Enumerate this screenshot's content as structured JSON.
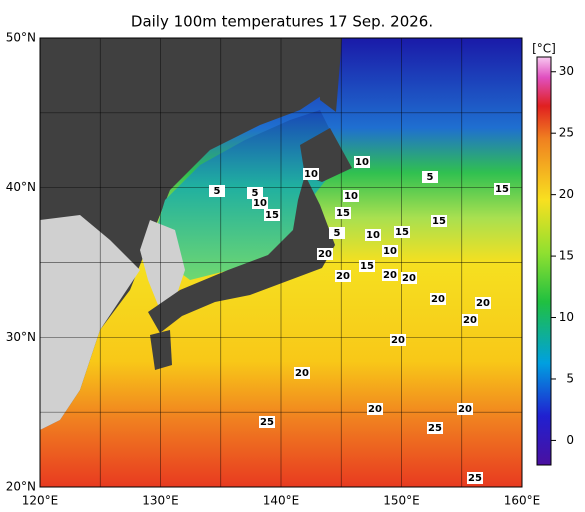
{
  "map": {
    "title": "Daily 100m temperatures 17 Sep. 2026.",
    "xlim": [
      120,
      160
    ],
    "ylim": [
      20,
      50
    ],
    "xticks": [
      {
        "value": 120,
        "label": "120°E"
      },
      {
        "value": 130,
        "label": "130°E"
      },
      {
        "value": 140,
        "label": "140°E"
      },
      {
        "value": 150,
        "label": "150°E"
      },
      {
        "value": 160,
        "label": "160°E"
      }
    ],
    "yticks": [
      {
        "value": 20,
        "label": "20°N"
      },
      {
        "value": 30,
        "label": "30°N"
      },
      {
        "value": 40,
        "label": "40°N"
      },
      {
        "value": 50,
        "label": "50°N"
      }
    ],
    "colorbar": {
      "label": "[°C]",
      "lim": [
        -2,
        31.2
      ],
      "ticks": [
        0,
        5,
        10,
        15,
        20,
        25,
        30
      ]
    },
    "contour_labels": [
      10,
      5,
      15,
      5,
      5,
      10,
      15,
      10,
      10,
      15,
      15,
      15,
      5,
      10,
      10,
      20,
      20,
      15,
      20,
      20,
      20,
      20,
      20,
      20,
      20,
      20,
      20,
      25,
      25,
      25
    ]
  }
}
